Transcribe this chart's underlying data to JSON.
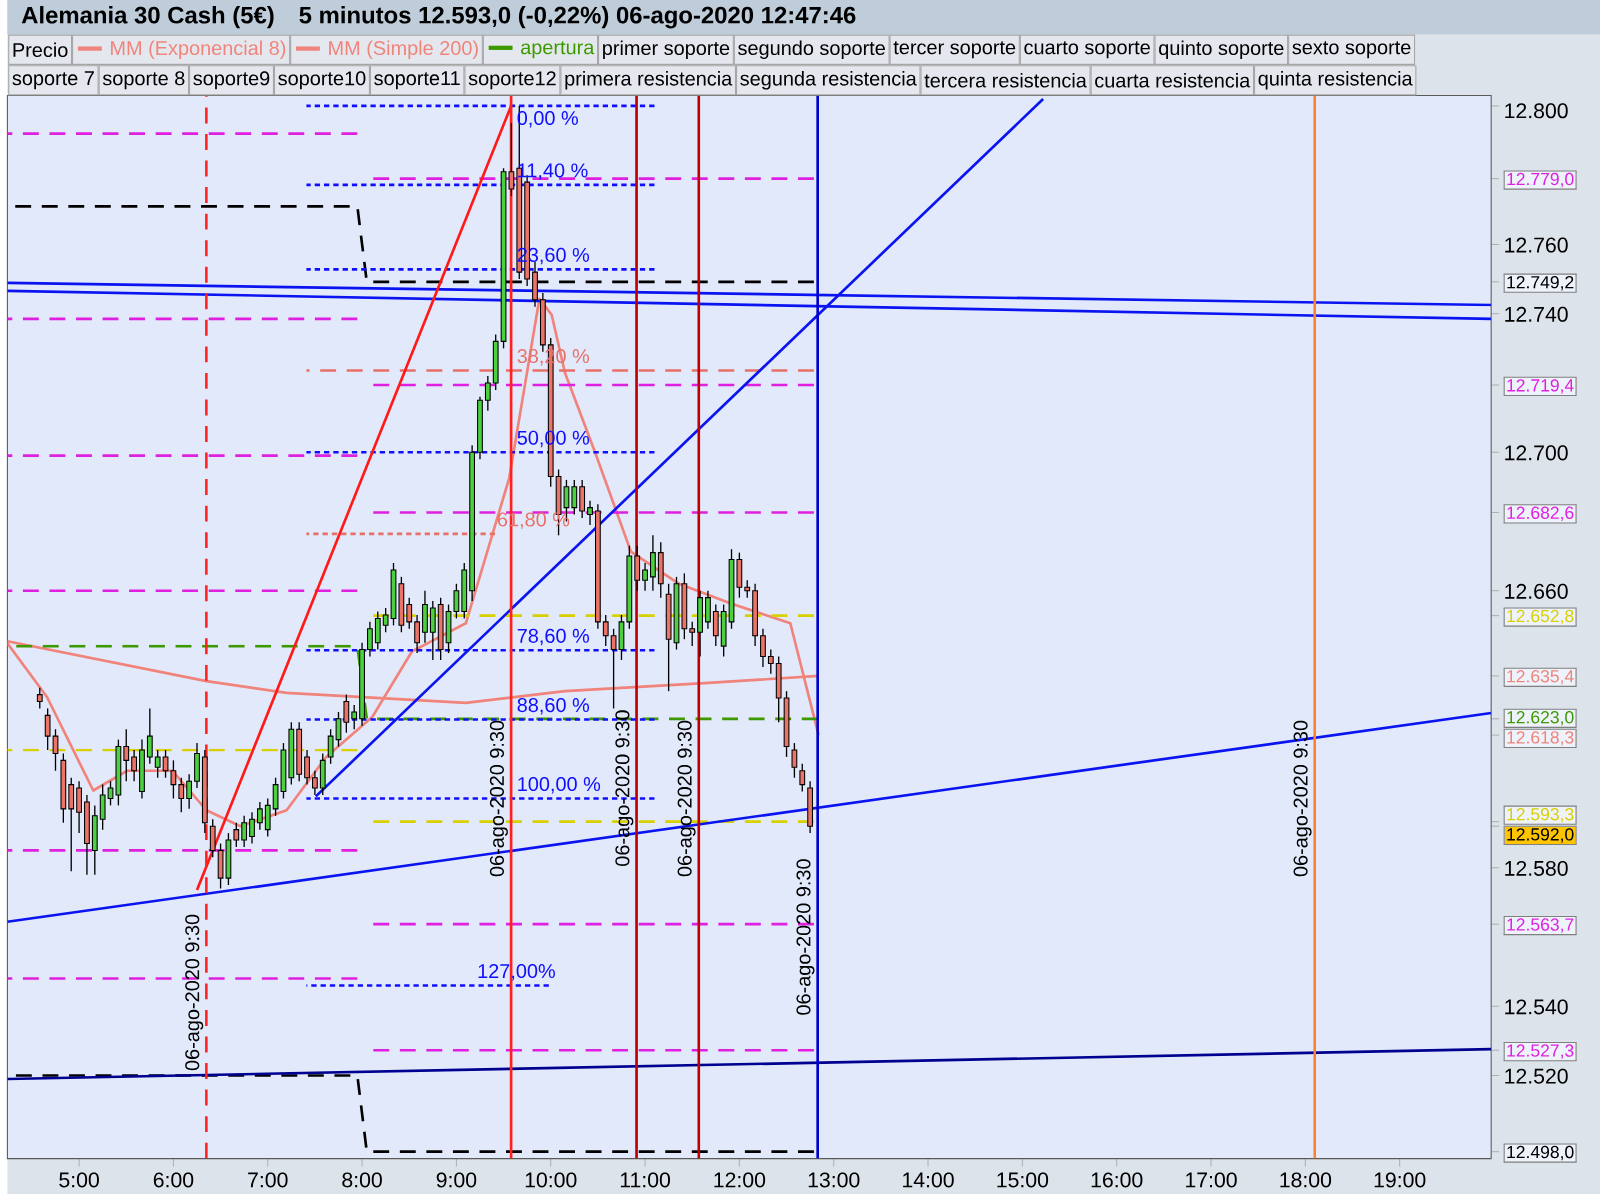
{
  "chart_data": {
    "type": "candlestick",
    "title": "Alemania 30 Cash (5€)",
    "subtitle": "5 minutos   12.593,0 (-0,22%)   06-ago-2020 12:47:46",
    "legend": "top",
    "xlim": [
      4.24,
      19.97
    ],
    "ylim": [
      12496,
      12803
    ],
    "xticks": [
      {
        "value": 5,
        "label": "5:00"
      },
      {
        "value": 6,
        "label": "6:00"
      },
      {
        "value": 7,
        "label": "7:00"
      },
      {
        "value": 8,
        "label": "8:00"
      },
      {
        "value": 9,
        "label": "9:00"
      },
      {
        "value": 10,
        "label": "10:00"
      },
      {
        "value": 11,
        "label": "11:00"
      },
      {
        "value": 12,
        "label": "12:00"
      },
      {
        "value": 13,
        "label": "13:00"
      },
      {
        "value": 14,
        "label": "14:00"
      },
      {
        "value": 15,
        "label": "15:00"
      },
      {
        "value": 16,
        "label": "16:00"
      },
      {
        "value": 17,
        "label": "17:00"
      },
      {
        "value": 18,
        "label": "18:00"
      },
      {
        "value": 19,
        "label": "19:00"
      }
    ],
    "yticks": [
      {
        "value": 12800,
        "label": "12.800"
      },
      {
        "value": 12779,
        "label": "12.779,0"
      },
      {
        "value": 12760,
        "label": "12.760"
      },
      {
        "value": 12749.2,
        "label": "12.749,2"
      },
      {
        "value": 12740,
        "label": "12.740"
      },
      {
        "value": 12719.4,
        "label": "12.719,4"
      },
      {
        "value": 12700,
        "label": "12.700"
      },
      {
        "value": 12682.6,
        "label": "12.682,6"
      },
      {
        "value": 12660,
        "label": "12.660"
      },
      {
        "value": 12652.8,
        "label": "12.652,8"
      },
      {
        "value": 12635.4,
        "label": "12.635,4"
      },
      {
        "value": 12623,
        "label": "12.623,0"
      },
      {
        "value": 12618.3,
        "label": "12.618,3"
      },
      {
        "value": 12593.3,
        "label": "12.593,3"
      },
      {
        "value": 12592,
        "label": "12.592,0"
      },
      {
        "value": 12580,
        "label": "12.580"
      },
      {
        "value": 12563.7,
        "label": "12.563,7"
      },
      {
        "value": 12540,
        "label": "12.540"
      },
      {
        "value": 12527.3,
        "label": "12.527,3"
      },
      {
        "value": 12520,
        "label": "12.520"
      },
      {
        "value": 12498,
        "label": "12.498,0"
      }
    ],
    "series": [
      {
        "name": "Precio",
        "x": [
          4.5833,
          4.6667,
          4.75,
          4.8333,
          4.9167,
          5,
          5.0833,
          5.1667,
          5.25,
          5.3333,
          5.4167,
          5.5,
          5.5833,
          5.6667,
          5.75,
          5.8333,
          5.9167,
          6,
          6.0833,
          6.1667,
          6.25,
          6.3333,
          6.4167,
          6.5,
          6.5833,
          6.6667,
          6.75,
          6.8333,
          6.9167,
          7,
          7.0833,
          7.1667,
          7.25,
          7.3333,
          7.4167,
          7.5,
          7.5833,
          7.6667,
          7.75,
          7.8333,
          7.9167,
          8,
          8.0833,
          8.1667,
          8.25,
          8.3333,
          8.4167,
          8.5,
          8.5833,
          8.6667,
          8.75,
          8.8333,
          8.9167,
          9,
          9.0833,
          9.1667,
          9.25,
          9.3333,
          9.4167,
          9.5,
          9.5833,
          9.6667,
          9.75,
          9.8333,
          9.9167,
          10,
          10.0833,
          10.1667,
          10.25,
          10.3333,
          10.4167,
          10.5,
          10.5833,
          10.6667,
          10.75,
          10.8333,
          10.9167,
          11,
          11.0833,
          11.1667,
          11.25,
          11.3333,
          11.4167,
          11.5,
          11.5833,
          11.6667,
          11.75,
          11.8333,
          11.9167,
          12,
          12.0833,
          12.1667,
          12.25,
          12.3333,
          12.4167,
          12.5,
          12.5833,
          12.6667,
          12.75
        ],
        "ohlc": [
          [
            12630,
            12632,
            12626,
            12628
          ],
          [
            12624,
            12626,
            12614,
            12618
          ],
          [
            12618,
            12620,
            12608,
            12613
          ],
          [
            12611,
            12613,
            12593,
            12597
          ],
          [
            12604,
            12606,
            12579,
            12597
          ],
          [
            12603,
            12605,
            12590,
            12596
          ],
          [
            12599,
            12601,
            12578,
            12587
          ],
          [
            12585,
            12598,
            12578,
            12595
          ],
          [
            12594,
            12604,
            12591,
            12601
          ],
          [
            12600,
            12605,
            12598,
            12603
          ],
          [
            12601,
            12617,
            12598,
            12615
          ],
          [
            12615,
            12620,
            12605,
            12611
          ],
          [
            12612,
            12614,
            12605,
            12608
          ],
          [
            12602,
            12617,
            12600,
            12614
          ],
          [
            12612,
            12626,
            12610,
            12618
          ],
          [
            12609,
            12614,
            12606,
            12612
          ],
          [
            12612,
            12614,
            12606,
            12608
          ],
          [
            12608,
            12611,
            12600,
            12604
          ],
          [
            12604,
            12606,
            12596,
            12600
          ],
          [
            12600,
            12607,
            12597,
            12605
          ],
          [
            12605,
            12616,
            12603,
            12613
          ],
          [
            12612,
            12614,
            12590,
            12593
          ],
          [
            12592,
            12594,
            12583,
            12585
          ],
          [
            12585,
            12587,
            12574,
            12577
          ],
          [
            12577,
            12590,
            12575,
            12588
          ],
          [
            12591,
            12593,
            12586,
            12588
          ],
          [
            12588,
            12595,
            12586,
            12593
          ],
          [
            12589,
            12596,
            12587,
            12594
          ],
          [
            12593,
            12599,
            12591,
            12597
          ],
          [
            12591,
            12600,
            12589,
            12598
          ],
          [
            12597,
            12606,
            12595,
            12604
          ],
          [
            12602,
            12616,
            12600,
            12614
          ],
          [
            12606,
            12622,
            12604,
            12620
          ],
          [
            12620,
            12622,
            12605,
            12607
          ],
          [
            12612,
            12614,
            12604,
            12606
          ],
          [
            12606,
            12608,
            12601,
            12603
          ],
          [
            12603,
            12613,
            12601,
            12611
          ],
          [
            12612,
            12620,
            12610,
            12618
          ],
          [
            12617,
            12625,
            12615,
            12623
          ],
          [
            12628,
            12630,
            12619,
            12622
          ],
          [
            12623,
            12627,
            12620,
            12625
          ],
          [
            12623,
            12645,
            12621,
            12643
          ],
          [
            12643,
            12651,
            12641,
            12649
          ],
          [
            12645,
            12654,
            12643,
            12652
          ],
          [
            12650,
            12655,
            12648,
            12653
          ],
          [
            12652,
            12668,
            12650,
            12666
          ],
          [
            12662,
            12664,
            12648,
            12650
          ],
          [
            12656,
            12658,
            12649,
            12651
          ],
          [
            12651,
            12653,
            12642,
            12645
          ],
          [
            12648,
            12660,
            12645,
            12656
          ],
          [
            12648,
            12657,
            12640,
            12655
          ],
          [
            12656,
            12658,
            12640,
            12643
          ],
          [
            12645,
            12656,
            12642,
            12654
          ],
          [
            12654,
            12662,
            12652,
            12660
          ],
          [
            12654,
            12668,
            12652,
            12666
          ],
          [
            12660,
            12702,
            12657,
            12700
          ],
          [
            12700,
            12716,
            12698,
            12715
          ],
          [
            12715,
            12722,
            12712,
            12720
          ],
          [
            12720,
            12734,
            12718,
            12732
          ],
          [
            12732,
            12782,
            12730,
            12781
          ],
          [
            12781,
            12795,
            12774,
            12776
          ],
          [
            12782,
            12800,
            12750,
            12752
          ],
          [
            12778,
            12780,
            12748,
            12750
          ],
          [
            12752,
            12755,
            12742,
            12744
          ],
          [
            12744,
            12746,
            12729,
            12731
          ],
          [
            12731,
            12733,
            12690,
            12693
          ],
          [
            12693,
            12695,
            12676,
            12682
          ],
          [
            12684,
            12692,
            12680,
            12690
          ],
          [
            12684,
            12692,
            12682,
            12690
          ],
          [
            12690,
            12692,
            12681,
            12683
          ],
          [
            12682,
            12686,
            12679,
            12684
          ],
          [
            12683,
            12685,
            12649,
            12651
          ],
          [
            12651,
            12653,
            12644,
            12647
          ],
          [
            12647,
            12649,
            12626,
            12643
          ],
          [
            12643,
            12653,
            12640,
            12651
          ],
          [
            12651,
            12673,
            12649,
            12670
          ],
          [
            12670,
            12673,
            12660,
            12663
          ],
          [
            12663,
            12668,
            12660,
            12666
          ],
          [
            12664,
            12676,
            12660,
            12671
          ],
          [
            12671,
            12674,
            12658,
            12662
          ],
          [
            12659,
            12662,
            12631,
            12646
          ],
          [
            12645,
            12664,
            12643,
            12662
          ],
          [
            12662,
            12665,
            12646,
            12649
          ],
          [
            12649,
            12651,
            12644,
            12648
          ],
          [
            12648,
            12660,
            12641,
            12658
          ],
          [
            12651,
            12660,
            12649,
            12658
          ],
          [
            12654,
            12656,
            12644,
            12647
          ],
          [
            12644,
            12656,
            12641,
            12654
          ],
          [
            12651,
            12672,
            12649,
            12669
          ],
          [
            12669,
            12671,
            12658,
            12661
          ],
          [
            12661,
            12663,
            12658,
            12660
          ],
          [
            12660,
            12662,
            12644,
            12647
          ],
          [
            12647,
            12649,
            12638,
            12641
          ],
          [
            12641,
            12643,
            12636,
            12639
          ],
          [
            12639,
            12641,
            12622,
            12629
          ],
          [
            12629,
            12631,
            12612,
            12615
          ],
          [
            12614,
            12616,
            12606,
            12609
          ],
          [
            12608,
            12610,
            12602,
            12604
          ],
          [
            12603,
            12605,
            12590,
            12592
          ]
        ]
      },
      {
        "name": "MM (Exponencial 8)",
        "type": "line",
        "color": "#f0837a",
        "x": [
          4.24,
          4.66,
          5.15,
          5.51,
          5.99,
          6.35,
          6.71,
          7.2,
          7.62,
          8.11,
          8.53,
          9.1,
          9.56,
          9.88,
          10.01,
          10.15,
          10.47,
          10.85,
          11.36,
          11.91,
          12.54,
          12.84
        ],
        "values": [
          12644.8,
          12629.3,
          12602.3,
          12608,
          12608,
          12596.6,
          12592,
          12596.6,
          12612,
          12623.6,
          12642.5,
          12650.6,
          12692.5,
          12744.3,
          12739.7,
          12723,
          12700,
          12671.3,
          12662,
          12656.3,
          12650.6,
          12618.3
        ]
      },
      {
        "name": "MM (Simple 200)",
        "type": "line",
        "color": "#f0837a",
        "x": [
          4.24,
          6.35,
          7.2,
          9.1,
          10.15,
          11.63,
          12.84
        ],
        "values": [
          12645.4,
          12633.9,
          12630.5,
          12627.6,
          12631,
          12633.3,
          12635.4
        ]
      },
      {
        "name": "apertura",
        "type": "line",
        "color": "#3c9a00",
        "line_style": "dashed",
        "x": [
          4.24,
          7.95,
          8.05,
          12.83
        ],
        "values": [
          12644,
          12644,
          12623,
          12623
        ]
      },
      {
        "type": "line",
        "color": "#000000",
        "line_style": "dashed",
        "x": [
          4.24,
          7.95,
          8.05,
          12.79
        ],
        "values": [
          12771,
          12771,
          12749.2,
          12749.2
        ]
      },
      {
        "type": "line",
        "color": "#000000",
        "line_style": "dashed",
        "x": [
          4.24,
          7.95,
          8.05,
          12.79
        ],
        "values": [
          12520,
          12520,
          12498,
          12498
        ]
      },
      {
        "type": "line",
        "color": "#e020e0",
        "line_style": "dashed",
        "x": [
          4.24,
          7.95
        ],
        "values": [
          12792,
          12792
        ]
      },
      {
        "type": "line",
        "color": "#e020e0",
        "line_style": "dashed",
        "x": [
          4.24,
          7.95
        ],
        "values": [
          12738.5,
          12738.5
        ]
      },
      {
        "type": "line",
        "color": "#e020e0",
        "line_style": "dashed",
        "x": [
          4.24,
          7.95
        ],
        "values": [
          12699,
          12699
        ]
      },
      {
        "type": "line",
        "color": "#e020e0",
        "line_style": "dashed",
        "x": [
          4.24,
          7.95
        ],
        "values": [
          12660,
          12660
        ]
      },
      {
        "type": "line",
        "color": "#e020e0",
        "line_style": "dashed",
        "x": [
          4.24,
          7.95
        ],
        "values": [
          12585,
          12585
        ]
      },
      {
        "type": "line",
        "color": "#e020e0",
        "line_style": "dashed",
        "x": [
          4.24,
          7.95
        ],
        "values": [
          12548,
          12548
        ]
      },
      {
        "type": "line",
        "color": "#e020e0",
        "line_style": "dashed",
        "x": [
          8.05,
          12.79
        ],
        "values": [
          12779,
          12779
        ]
      },
      {
        "type": "line",
        "color": "#e020e0",
        "line_style": "dashed",
        "x": [
          8.05,
          12.79
        ],
        "values": [
          12719.4,
          12719.4
        ]
      },
      {
        "type": "line",
        "color": "#e020e0",
        "line_style": "dashed",
        "x": [
          8.05,
          12.79
        ],
        "values": [
          12682.6,
          12682.6
        ]
      },
      {
        "type": "line",
        "color": "#e020e0",
        "line_style": "dashed",
        "x": [
          8.05,
          12.79
        ],
        "values": [
          12563.7,
          12563.7
        ]
      },
      {
        "type": "line",
        "color": "#e020e0",
        "line_style": "dashed",
        "x": [
          8.05,
          12.79
        ],
        "values": [
          12527.3,
          12527.3
        ]
      },
      {
        "type": "line",
        "color": "#d8d000",
        "line_style": "dashed",
        "x": [
          4.24,
          7.95
        ],
        "values": [
          12614,
          12614
        ]
      },
      {
        "type": "line",
        "color": "#d8d000",
        "line_style": "dashed",
        "x": [
          8.05,
          12.79
        ],
        "values": [
          12652.8,
          12652.8
        ]
      },
      {
        "type": "line",
        "color": "#d8d000",
        "line_style": "dashed",
        "x": [
          8.05,
          12.79
        ],
        "values": [
          12593.3,
          12593.3
        ]
      },
      {
        "type": "line",
        "color": "#1010ff",
        "line_style": "dotted",
        "x": [
          7.41,
          11.1
        ],
        "values": [
          12800,
          12800
        ]
      },
      {
        "type": "line",
        "color": "#1010ff",
        "line_style": "dotted",
        "x": [
          7.41,
          11.1
        ],
        "values": [
          12777.2,
          12777.2
        ]
      },
      {
        "type": "line",
        "color": "#1010ff",
        "line_style": "dotted",
        "x": [
          7.41,
          11.1
        ],
        "values": [
          12752.8,
          12752.8
        ]
      },
      {
        "type": "line",
        "color": "#e87068",
        "line_style": "dashed",
        "x": [
          7.41,
          12.79
        ],
        "values": [
          12723.6,
          12723.6
        ]
      },
      {
        "type": "line",
        "color": "#1010ff",
        "line_style": "dotted",
        "x": [
          7.41,
          11.1
        ],
        "values": [
          12700,
          12700
        ]
      },
      {
        "type": "line",
        "color": "#e87068",
        "line_style": "dotted",
        "x": [
          7.41,
          9.41
        ],
        "values": [
          12676.4,
          12676.4
        ]
      },
      {
        "type": "line",
        "color": "#1010ff",
        "line_style": "dotted",
        "x": [
          7.41,
          11.1
        ],
        "values": [
          12642.8,
          12642.8
        ]
      },
      {
        "type": "line",
        "color": "#1010ff",
        "line_style": "dotted",
        "x": [
          7.41,
          11.1
        ],
        "values": [
          12622.8,
          12622.8
        ]
      },
      {
        "type": "line",
        "color": "#1010ff",
        "line_style": "dotted",
        "x": [
          7.41,
          11.1
        ],
        "values": [
          12600,
          12600
        ]
      },
      {
        "type": "line",
        "color": "#1010ff",
        "line_style": "dotted",
        "x": [
          7.41,
          9.98
        ],
        "values": [
          12546,
          12546
        ]
      },
      {
        "type": "line",
        "color": "#0a14f0",
        "x": [
          7.51,
          15.22
        ],
        "values": [
          12600.6,
          12802
        ]
      },
      {
        "type": "line",
        "color": "#0a14f0",
        "x": [
          4.24,
          19.97
        ],
        "values": [
          12748.9,
          12742.5
        ]
      },
      {
        "type": "line",
        "color": "#0a14f0",
        "x": [
          4.24,
          19.97
        ],
        "values": [
          12746.6,
          12738.5
        ]
      },
      {
        "type": "line",
        "color": "#0a14f0",
        "x": [
          4.24,
          19.97
        ],
        "values": [
          12564.4,
          12624.7
        ]
      },
      {
        "type": "line",
        "color": "#000090",
        "x": [
          4.24,
          19.97
        ],
        "values": [
          12519,
          12527.6
        ]
      },
      {
        "type": "line",
        "color": "#ff1a1a",
        "x": [
          6.25,
          9.58
        ],
        "values": [
          12573.6,
          12800
        ]
      }
    ],
    "ref_lines": [
      {
        "axis": "x",
        "value": 6.35,
        "color": "#ff2020",
        "line_style": "dashed"
      },
      {
        "axis": "x",
        "value": 9.58,
        "color": "#ff2020"
      },
      {
        "axis": "x",
        "value": 10.91,
        "color": "#c00000"
      },
      {
        "axis": "x",
        "value": 11.57,
        "color": "#c00000"
      },
      {
        "axis": "x",
        "value": 12.83,
        "color": "#0000cc"
      },
      {
        "axis": "x",
        "value": 18.1,
        "color": "#ff7f2a"
      }
    ],
    "annotations": [
      {
        "text": "06-ago-2020 9:30",
        "x": 6.35,
        "y": 12544
      },
      {
        "text": "06-ago-2020 9:30",
        "x": 9.58,
        "y": 12600
      },
      {
        "text": "06-ago-2020 9:30",
        "x": 10.91,
        "y": 12603
      },
      {
        "text": "06-ago-2020 9:30",
        "x": 11.57,
        "y": 12600
      },
      {
        "text": "06-ago-2020 9:30",
        "x": 12.83,
        "y": 12560
      },
      {
        "text": "06-ago-2020 9:30",
        "x": 18.1,
        "y": 12600
      },
      {
        "text": "0,00 %",
        "x": 9.62,
        "y": 12800
      },
      {
        "text": "11,40 %",
        "x": 9.62,
        "y": 12777.2
      },
      {
        "text": "23,60 %",
        "x": 9.62,
        "y": 12752.8
      },
      {
        "text": "38,20 %",
        "x": 9.62,
        "y": 12723.6
      },
      {
        "text": "50,00 %",
        "x": 9.62,
        "y": 12700
      },
      {
        "text": "61,80 %",
        "x": 9.41,
        "y": 12676.4
      },
      {
        "text": "78,60 %",
        "x": 9.62,
        "y": 12642.8
      },
      {
        "text": "88,60 %",
        "x": 9.62,
        "y": 12622.8
      },
      {
        "text": "100,00 %",
        "x": 9.62,
        "y": 12600
      },
      {
        "text": "127,00%",
        "x": 9.2,
        "y": 12546
      },
      "primer soporte",
      "segundo soporte",
      "tercer soporte",
      "cuarto soporte",
      "quinto soporte",
      "sexto soporte",
      "soporte 7",
      "soporte 8",
      "soporte9",
      "soporte10",
      "soporte11",
      "soporte12",
      "primera resistencia",
      "segunda resistencia",
      "tercera resistencia",
      "cuarta resistencia",
      "quinta resistencia"
    ]
  }
}
